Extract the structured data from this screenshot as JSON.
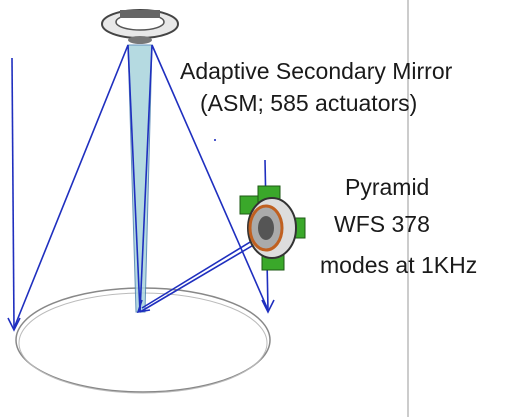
{
  "labels": {
    "asm_title": "Adaptive Secondary Mirror",
    "asm_detail": "(ASM; 585 actuators)",
    "wfs_line1": "Pyramid",
    "wfs_line2": "WFS 378",
    "wfs_line3": "modes at 1KHz"
  }
}
